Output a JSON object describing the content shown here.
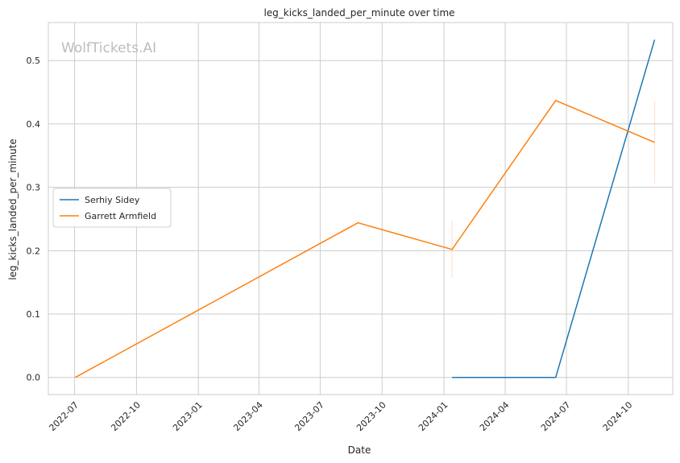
{
  "chart_data": {
    "type": "line",
    "title": "leg_kicks_landed_per_minute over time",
    "xlabel": "Date",
    "ylabel": "leg_kicks_landed_per_minute",
    "watermark": "WolfTickets.AI",
    "x_ticks": [
      "2022-07",
      "2022-10",
      "2023-01",
      "2023-04",
      "2023-07",
      "2023-10",
      "2024-01",
      "2024-04",
      "2024-07",
      "2024-10"
    ],
    "y_ticks": [
      "0.0",
      "0.1",
      "0.2",
      "0.3",
      "0.4",
      "0.5"
    ],
    "xlim": [
      "2022-05-23",
      "2024-12-06"
    ],
    "ylim": [
      -0.027,
      0.56
    ],
    "grid": true,
    "legend_position": "center-left",
    "series": [
      {
        "name": "Serhiy Sidey",
        "color": "#1f77b4",
        "points": [
          {
            "x": "2024-01-13",
            "y": 0.0
          },
          {
            "x": "2024-06-15",
            "y": 0.0
          },
          {
            "x": "2024-11-09",
            "y": 0.533
          }
        ]
      },
      {
        "name": "Garrett Armfield",
        "color": "#ff7f0e",
        "points": [
          {
            "x": "2022-07-02",
            "y": 0.0
          },
          {
            "x": "2023-08-26",
            "y": 0.244
          },
          {
            "x": "2024-01-13",
            "y": 0.202
          },
          {
            "x": "2024-06-15",
            "y": 0.437
          },
          {
            "x": "2024-11-09",
            "y": 0.371
          }
        ]
      }
    ]
  }
}
